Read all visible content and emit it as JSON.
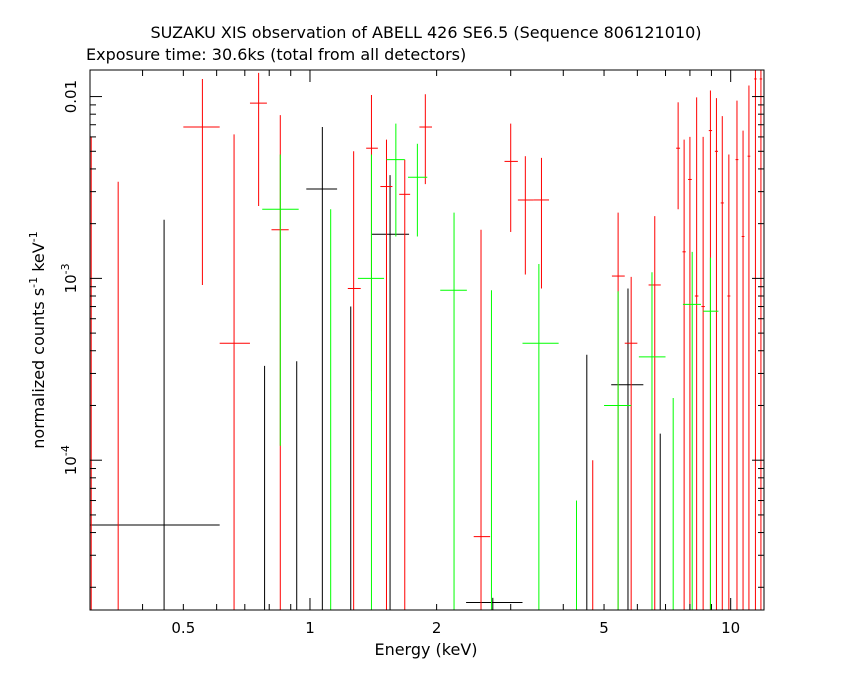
{
  "chart_data": {
    "type": "scatter",
    "title": "SUZAKU XIS observation of ABELL 426 SE6.5 (Sequence 806121010)",
    "subtitle": "Exposure time: 30.6ks (total from all detectors)",
    "xlabel": "Energy (keV)",
    "ylabel_main": "normalized counts s",
    "ylabel_sup1": "-1",
    "ylabel_mid": " keV",
    "ylabel_sup2": "-1",
    "x_scale": "log",
    "y_scale": "log",
    "xlim": [
      0.3,
      12
    ],
    "ylim": [
      1.5e-05,
      0.014
    ],
    "x_ticks": [
      {
        "value": 0.5,
        "label": "0.5"
      },
      {
        "value": 1,
        "label": "1"
      },
      {
        "value": 2,
        "label": "2"
      },
      {
        "value": 5,
        "label": "5"
      },
      {
        "value": 10,
        "label": "10"
      }
    ],
    "y_ticks": [
      {
        "value": 0.0001,
        "base": "10",
        "exp": "-4"
      },
      {
        "value": 0.001,
        "base": "10",
        "exp": "-3"
      },
      {
        "value": 0.01,
        "base": "0.01",
        "exp": ""
      }
    ],
    "grid": false,
    "series": [
      {
        "color": "#000000",
        "points": [
          {
            "x": 0.45,
            "xlo": 0.3,
            "xhi": 0.61,
            "y": 4.4e-05,
            "ylo": 1.5e-05,
            "yhi": 0.0021
          },
          {
            "x": 0.78,
            "xlo": 0.78,
            "xhi": 0.78,
            "y": 0.0003,
            "ylo": 1.5e-05,
            "yhi": 0.00033
          },
          {
            "x": 0.93,
            "xlo": 0.93,
            "xhi": 0.93,
            "y": 0.0003,
            "ylo": 1.5e-05,
            "yhi": 0.00035
          },
          {
            "x": 1.07,
            "xlo": 0.98,
            "xhi": 1.16,
            "y": 0.0031,
            "ylo": 1.5e-05,
            "yhi": 0.0068
          },
          {
            "x": 1.25,
            "xlo": 1.25,
            "xhi": 1.25,
            "y": 0.0003,
            "ylo": 1.5e-05,
            "yhi": 0.0007
          },
          {
            "x": 1.55,
            "xlo": 1.4,
            "xhi": 1.72,
            "y": 0.00175,
            "ylo": 1.5e-05,
            "yhi": 0.0037
          },
          {
            "x": 2.72,
            "xlo": 2.35,
            "xhi": 3.2,
            "y": 1.65e-05,
            "ylo": 1.5e-05,
            "yhi": 1.75e-05
          },
          {
            "x": 4.55,
            "xlo": 4.55,
            "xhi": 4.55,
            "y": 0.0002,
            "ylo": 1.5e-05,
            "yhi": 0.00038
          },
          {
            "x": 5.7,
            "xlo": 5.2,
            "xhi": 6.2,
            "y": 0.00026,
            "ylo": 1.5e-05,
            "yhi": 0.00088
          },
          {
            "x": 6.8,
            "xlo": 6.8,
            "xhi": 6.8,
            "y": 0.0001,
            "ylo": 1.5e-05,
            "yhi": 0.00014
          }
        ]
      },
      {
        "color": "#ff0000",
        "points": [
          {
            "x": 0.302,
            "xlo": 0.302,
            "xhi": 0.302,
            "y": 0.001,
            "ylo": 1.5e-05,
            "yhi": 0.006
          },
          {
            "x": 0.35,
            "xlo": 0.35,
            "xhi": 0.35,
            "y": 0.001,
            "ylo": 1.5e-05,
            "yhi": 0.0034
          },
          {
            "x": 0.555,
            "xlo": 0.5,
            "xhi": 0.61,
            "y": 0.0068,
            "ylo": 0.00092,
            "yhi": 0.0125
          },
          {
            "x": 0.66,
            "xlo": 0.61,
            "xhi": 0.72,
            "y": 0.00044,
            "ylo": 1.5e-05,
            "yhi": 0.0062
          },
          {
            "x": 0.755,
            "xlo": 0.72,
            "xhi": 0.79,
            "y": 0.0092,
            "ylo": 0.0025,
            "yhi": 0.0135
          },
          {
            "x": 0.85,
            "xlo": 0.81,
            "xhi": 0.89,
            "y": 0.00185,
            "ylo": 1.5e-05,
            "yhi": 0.0079
          },
          {
            "x": 1.27,
            "xlo": 1.23,
            "xhi": 1.32,
            "y": 0.00088,
            "ylo": 1.5e-05,
            "yhi": 0.005
          },
          {
            "x": 1.4,
            "xlo": 1.36,
            "xhi": 1.45,
            "y": 0.0052,
            "ylo": 0.00024,
            "yhi": 0.0102
          },
          {
            "x": 1.52,
            "xlo": 1.47,
            "xhi": 1.57,
            "y": 0.0032,
            "ylo": 1.5e-05,
            "yhi": 0.0058
          },
          {
            "x": 1.68,
            "xlo": 1.63,
            "xhi": 1.73,
            "y": 0.0029,
            "ylo": 1.5e-05,
            "yhi": 0.0045
          },
          {
            "x": 1.88,
            "xlo": 1.82,
            "xhi": 1.95,
            "y": 0.0068,
            "ylo": 0.0033,
            "yhi": 0.0103
          },
          {
            "x": 2.55,
            "xlo": 2.45,
            "xhi": 2.68,
            "y": 3.8e-05,
            "ylo": 1.5e-05,
            "yhi": 0.00185
          },
          {
            "x": 3.0,
            "xlo": 2.9,
            "xhi": 3.12,
            "y": 0.0044,
            "ylo": 0.0018,
            "yhi": 0.0071
          },
          {
            "x": 3.25,
            "xlo": 3.12,
            "xhi": 3.4,
            "y": 0.0027,
            "ylo": 0.00105,
            "yhi": 0.0047
          },
          {
            "x": 3.55,
            "xlo": 3.4,
            "xhi": 3.7,
            "y": 0.0027,
            "ylo": 0.00088,
            "yhi": 0.0046
          },
          {
            "x": 4.7,
            "xlo": 4.7,
            "xhi": 4.7,
            "y": 5e-05,
            "ylo": 1.5e-05,
            "yhi": 0.0001
          },
          {
            "x": 5.4,
            "xlo": 5.22,
            "xhi": 5.6,
            "y": 0.00103,
            "ylo": 1.5e-05,
            "yhi": 0.0023
          },
          {
            "x": 5.8,
            "xlo": 5.6,
            "xhi": 6.0,
            "y": 0.00044,
            "ylo": 1.5e-05,
            "yhi": 0.00102
          },
          {
            "x": 6.6,
            "xlo": 6.38,
            "xhi": 6.82,
            "y": 0.00092,
            "ylo": 1.5e-05,
            "yhi": 0.0022
          },
          {
            "x": 7.5,
            "xlo": 7.42,
            "xhi": 7.58,
            "y": 0.0052,
            "ylo": 0.0024,
            "yhi": 0.0093
          },
          {
            "x": 7.75,
            "xlo": 7.68,
            "xhi": 7.82,
            "y": 0.0014,
            "ylo": 1.5e-05,
            "yhi": 0.0058
          },
          {
            "x": 8.0,
            "xlo": 7.92,
            "xhi": 8.08,
            "y": 0.0035,
            "ylo": 1.5e-05,
            "yhi": 0.006
          },
          {
            "x": 8.3,
            "xlo": 8.22,
            "xhi": 8.38,
            "y": 0.0008,
            "ylo": 1.5e-05,
            "yhi": 0.0099
          },
          {
            "x": 8.6,
            "xlo": 8.52,
            "xhi": 8.68,
            "y": 0.0007,
            "ylo": 1.5e-05,
            "yhi": 0.006
          },
          {
            "x": 8.95,
            "xlo": 8.87,
            "xhi": 9.03,
            "y": 0.0065,
            "ylo": 1.5e-05,
            "yhi": 0.0108
          },
          {
            "x": 9.25,
            "xlo": 9.17,
            "xhi": 9.33,
            "y": 0.005,
            "ylo": 1.5e-05,
            "yhi": 0.0098
          },
          {
            "x": 9.55,
            "xlo": 9.47,
            "xhi": 9.63,
            "y": 0.0026,
            "ylo": 1.5e-05,
            "yhi": 0.0078
          },
          {
            "x": 9.9,
            "xlo": 9.82,
            "xhi": 9.98,
            "y": 0.0008,
            "ylo": 1.5e-05,
            "yhi": 0.0048
          },
          {
            "x": 10.35,
            "xlo": 10.27,
            "xhi": 10.43,
            "y": 0.0045,
            "ylo": 1.5e-05,
            "yhi": 0.0095
          },
          {
            "x": 10.7,
            "xlo": 10.62,
            "xhi": 10.78,
            "y": 0.0017,
            "ylo": 1.5e-05,
            "yhi": 0.0065
          },
          {
            "x": 11.05,
            "xlo": 10.97,
            "xhi": 11.13,
            "y": 0.0047,
            "ylo": 1.5e-05,
            "yhi": 0.0115
          },
          {
            "x": 11.45,
            "xlo": 11.37,
            "xhi": 11.53,
            "y": 0.0125,
            "ylo": 1.5e-05,
            "yhi": 0.014
          },
          {
            "x": 11.8,
            "xlo": 11.72,
            "xhi": 11.88,
            "y": 0.0125,
            "ylo": 1.5e-05,
            "yhi": 0.014
          }
        ]
      },
      {
        "color": "#00ff00",
        "points": [
          {
            "x": 0.85,
            "xlo": 0.77,
            "xhi": 0.94,
            "y": 0.0024,
            "ylo": 0.00012,
            "yhi": 0.0048
          },
          {
            "x": 1.12,
            "xlo": 1.12,
            "xhi": 1.12,
            "y": 0.0005,
            "ylo": 1.5e-05,
            "yhi": 0.0024
          },
          {
            "x": 1.4,
            "xlo": 1.3,
            "xhi": 1.5,
            "y": 0.001,
            "ylo": 1.5e-05,
            "yhi": 0.0048
          },
          {
            "x": 1.6,
            "xlo": 1.52,
            "xhi": 1.68,
            "y": 0.0045,
            "ylo": 0.0017,
            "yhi": 0.0071
          },
          {
            "x": 1.8,
            "xlo": 1.71,
            "xhi": 1.9,
            "y": 0.0036,
            "ylo": 0.0017,
            "yhi": 0.0055
          },
          {
            "x": 2.2,
            "xlo": 2.04,
            "xhi": 2.36,
            "y": 0.00086,
            "ylo": 1.5e-05,
            "yhi": 0.0023
          },
          {
            "x": 2.7,
            "xlo": 2.7,
            "xhi": 2.7,
            "y": 0.0004,
            "ylo": 1.5e-05,
            "yhi": 0.00086
          },
          {
            "x": 3.5,
            "xlo": 3.2,
            "xhi": 3.9,
            "y": 0.00044,
            "ylo": 1.5e-05,
            "yhi": 0.0012
          },
          {
            "x": 4.3,
            "xlo": 4.3,
            "xhi": 4.3,
            "y": 4e-05,
            "ylo": 1.5e-05,
            "yhi": 6e-05
          },
          {
            "x": 5.4,
            "xlo": 5.0,
            "xhi": 5.8,
            "y": 0.0002,
            "ylo": 1.5e-05,
            "yhi": 0.00085
          },
          {
            "x": 6.5,
            "xlo": 6.05,
            "xhi": 7.0,
            "y": 0.00037,
            "ylo": 1.5e-05,
            "yhi": 0.00108
          },
          {
            "x": 7.3,
            "xlo": 7.3,
            "xhi": 7.3,
            "y": 0.0001,
            "ylo": 1.5e-05,
            "yhi": 0.00022
          },
          {
            "x": 8.1,
            "xlo": 7.7,
            "xhi": 8.5,
            "y": 0.00072,
            "ylo": 1.5e-05,
            "yhi": 0.0014
          },
          {
            "x": 8.95,
            "xlo": 8.6,
            "xhi": 9.35,
            "y": 0.00066,
            "ylo": 1.5e-05,
            "yhi": 0.0013
          }
        ]
      }
    ]
  }
}
